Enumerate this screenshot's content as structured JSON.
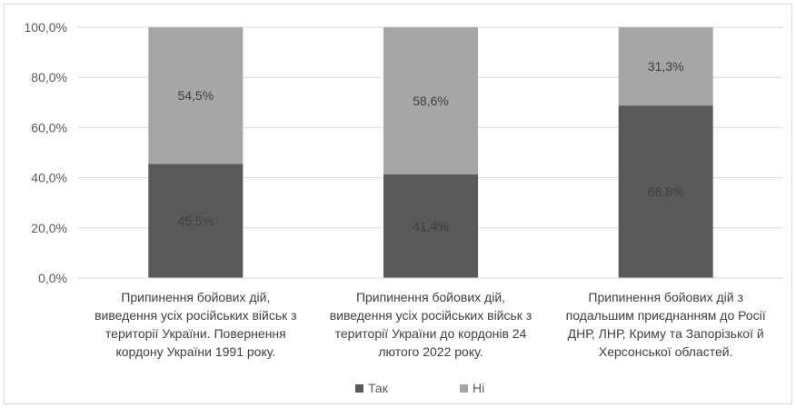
{
  "chart_data": {
    "type": "bar",
    "stacked": true,
    "percent_stacked": true,
    "categories": [
      [
        "Припинення бойових дій,",
        "виведення усіх російських військ з",
        "території України. Повернення",
        "кордону України 1991 року."
      ],
      [
        "Припинення бойових дій,",
        "виведення усіх російських військ з",
        "території України до кордонів 24",
        "лютого 2022 року."
      ],
      [
        "Припинення бойових дій з",
        "подальшим приєднанням до Росії",
        "ДНР, ЛНР, Криму та Запорізької й",
        "Херсонської областей."
      ]
    ],
    "series": [
      {
        "name": "Так",
        "color": "#595959",
        "values": [
          45.5,
          41.4,
          68.8
        ],
        "labels": [
          "45,5%",
          "41,4%",
          "68,8%"
        ]
      },
      {
        "name": "Ні",
        "color": "#a6a6a6",
        "values": [
          54.5,
          58.6,
          31.3
        ],
        "labels": [
          "54,5%",
          "58,6%",
          "31,3%"
        ]
      }
    ],
    "ylim": [
      0,
      100
    ],
    "yticks": [
      0,
      20,
      40,
      60,
      80,
      100
    ],
    "ytick_labels": [
      "0,0%",
      "20,0%",
      "40,0%",
      "60,0%",
      "80,0%",
      "100,0%"
    ],
    "grid": true,
    "legend": "bottom"
  }
}
